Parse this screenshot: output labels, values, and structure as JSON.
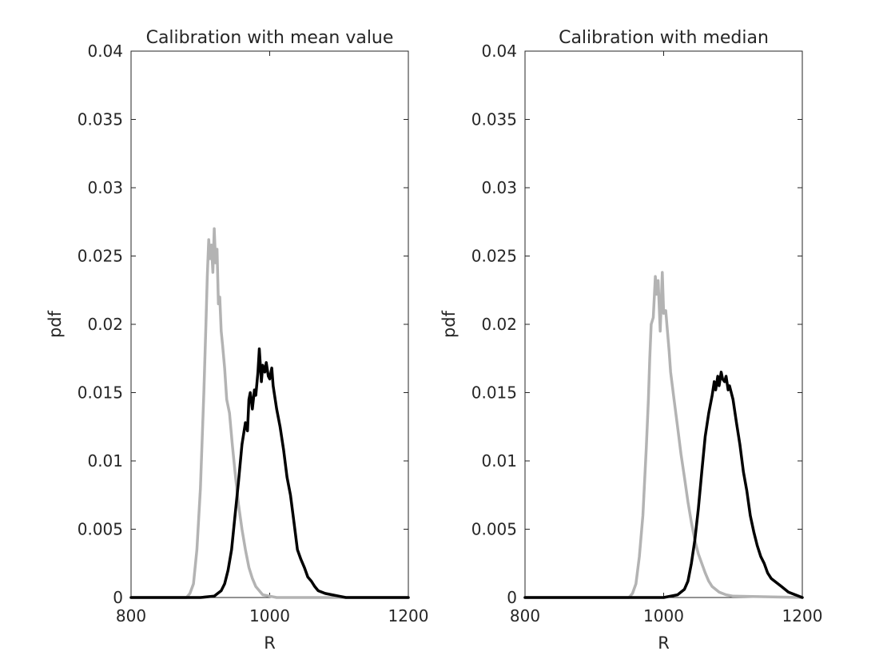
{
  "chart_data": [
    {
      "type": "line",
      "title": "Calibration with mean value",
      "xlabel": "R",
      "ylabel": "pdf",
      "xlim": [
        800,
        1200
      ],
      "ylim": [
        0,
        0.04
      ],
      "xticks": [
        "800",
        "1000",
        "1200"
      ],
      "yticks": [
        "0",
        "0.005",
        "0.01",
        "0.015",
        "0.02",
        "0.025",
        "0.03",
        "0.035",
        "0.04"
      ],
      "grid": false,
      "series": [
        {
          "color": "#b3b3b3",
          "x": [
            800,
            880,
            885,
            890,
            895,
            900,
            905,
            908,
            910,
            912,
            914,
            916,
            918,
            920,
            922,
            924,
            926,
            928,
            930,
            932,
            935,
            938,
            942,
            946,
            950,
            955,
            960,
            965,
            970,
            975,
            980,
            985,
            990,
            1000,
            1010,
            1200
          ],
          "y": [
            0,
            0,
            0.0003,
            0.001,
            0.0035,
            0.008,
            0.015,
            0.02,
            0.0235,
            0.0262,
            0.0248,
            0.0258,
            0.0238,
            0.027,
            0.0245,
            0.0255,
            0.0215,
            0.022,
            0.0195,
            0.0185,
            0.0168,
            0.0145,
            0.0135,
            0.0112,
            0.0092,
            0.0068,
            0.005,
            0.0035,
            0.0022,
            0.0014,
            0.0008,
            0.0005,
            0.0002,
            0.0001,
            0,
            0
          ]
        },
        {
          "color": "#000000",
          "x": [
            800,
            900,
            920,
            930,
            935,
            940,
            945,
            950,
            955,
            960,
            965,
            968,
            970,
            972,
            975,
            978,
            980,
            983,
            985,
            988,
            990,
            993,
            995,
            998,
            1000,
            1003,
            1005,
            1008,
            1010,
            1015,
            1020,
            1025,
            1030,
            1035,
            1040,
            1045,
            1050,
            1055,
            1060,
            1065,
            1070,
            1080,
            1090,
            1100,
            1110,
            1200
          ],
          "y": [
            0,
            0,
            0.0001,
            0.0005,
            0.001,
            0.002,
            0.0035,
            0.006,
            0.0085,
            0.0112,
            0.0128,
            0.0122,
            0.0145,
            0.015,
            0.0138,
            0.0152,
            0.0148,
            0.0165,
            0.0182,
            0.0158,
            0.017,
            0.0165,
            0.0172,
            0.0162,
            0.016,
            0.0168,
            0.0155,
            0.0145,
            0.0138,
            0.0125,
            0.0108,
            0.0088,
            0.0075,
            0.0055,
            0.0035,
            0.0028,
            0.0022,
            0.0015,
            0.0012,
            0.0008,
            0.0005,
            0.0003,
            0.0002,
            0.0001,
            0,
            0
          ]
        }
      ]
    },
    {
      "type": "line",
      "title": "Calibration with median",
      "xlabel": "R",
      "ylabel": "pdf",
      "xlim": [
        800,
        1200
      ],
      "ylim": [
        0,
        0.04
      ],
      "xticks": [
        "800",
        "1000",
        "1200"
      ],
      "yticks": [
        "0",
        "0.005",
        "0.01",
        "0.015",
        "0.02",
        "0.025",
        "0.03",
        "0.035",
        "0.04"
      ],
      "grid": false,
      "series": [
        {
          "color": "#b3b3b3",
          "x": [
            800,
            950,
            955,
            960,
            965,
            970,
            975,
            978,
            980,
            982,
            985,
            988,
            990,
            992,
            995,
            998,
            1000,
            1003,
            1005,
            1008,
            1010,
            1015,
            1020,
            1025,
            1030,
            1035,
            1040,
            1045,
            1050,
            1055,
            1060,
            1065,
            1070,
            1080,
            1090,
            1100,
            1200
          ],
          "y": [
            0,
            0,
            0.0003,
            0.001,
            0.003,
            0.006,
            0.011,
            0.0145,
            0.0175,
            0.02,
            0.0205,
            0.0235,
            0.0222,
            0.0232,
            0.0195,
            0.0238,
            0.0208,
            0.021,
            0.0198,
            0.018,
            0.0165,
            0.0145,
            0.0125,
            0.0105,
            0.0088,
            0.007,
            0.0055,
            0.0042,
            0.0032,
            0.0025,
            0.0018,
            0.0012,
            0.0008,
            0.0004,
            0.0002,
            0.0001,
            0
          ]
        },
        {
          "color": "#000000",
          "x": [
            800,
            1000,
            1020,
            1030,
            1035,
            1040,
            1045,
            1050,
            1055,
            1060,
            1065,
            1070,
            1073,
            1075,
            1078,
            1080,
            1083,
            1085,
            1088,
            1090,
            1093,
            1095,
            1100,
            1105,
            1110,
            1115,
            1120,
            1125,
            1130,
            1135,
            1140,
            1145,
            1150,
            1155,
            1160,
            1170,
            1180,
            1190,
            1200
          ],
          "y": [
            0,
            0,
            0.0002,
            0.0006,
            0.0012,
            0.0025,
            0.0042,
            0.0065,
            0.0092,
            0.0118,
            0.0135,
            0.0148,
            0.0158,
            0.0152,
            0.0162,
            0.0155,
            0.0165,
            0.016,
            0.0158,
            0.0162,
            0.0152,
            0.0155,
            0.0145,
            0.0128,
            0.0112,
            0.0092,
            0.0078,
            0.006,
            0.0048,
            0.0038,
            0.003,
            0.0025,
            0.0018,
            0.0014,
            0.0012,
            0.0008,
            0.0004,
            0.0002,
            0
          ]
        }
      ]
    }
  ]
}
